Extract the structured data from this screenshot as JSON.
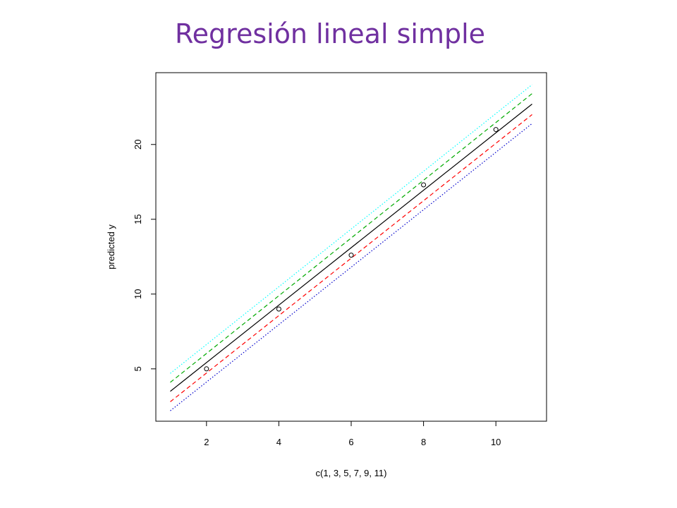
{
  "slide": {
    "title": "Regresión lineal simple"
  },
  "chart_data": {
    "type": "line",
    "title": "",
    "xlabel": "c(1, 3, 5, 7, 9, 11)",
    "ylabel": "predicted y",
    "xlim": [
      0.6,
      11.4
    ],
    "ylim": [
      1.5,
      24.8
    ],
    "x_ticks": [
      2,
      4,
      6,
      8,
      10
    ],
    "y_ticks": [
      5,
      10,
      15,
      20
    ],
    "grid": false,
    "legend": "none",
    "points": {
      "x": [
        2,
        4,
        6,
        8,
        10
      ],
      "y": [
        5.0,
        9.0,
        12.6,
        17.3,
        21.0
      ]
    },
    "series": [
      {
        "x": [
          1,
          11
        ],
        "y": [
          4.7,
          24.0
        ],
        "color": "#00ffff",
        "style": "dotted"
      },
      {
        "x": [
          1,
          11
        ],
        "y": [
          4.1,
          23.4
        ],
        "color": "#00aa00",
        "style": "dashed"
      },
      {
        "x": [
          1,
          11
        ],
        "y": [
          3.5,
          22.7
        ],
        "color": "#000000",
        "style": "solid"
      },
      {
        "x": [
          1,
          11
        ],
        "y": [
          2.8,
          22.0
        ],
        "color": "#ff0000",
        "style": "dashed"
      },
      {
        "x": [
          1,
          11
        ],
        "y": [
          2.2,
          21.4
        ],
        "color": "#0000cc",
        "style": "dotted"
      }
    ]
  }
}
